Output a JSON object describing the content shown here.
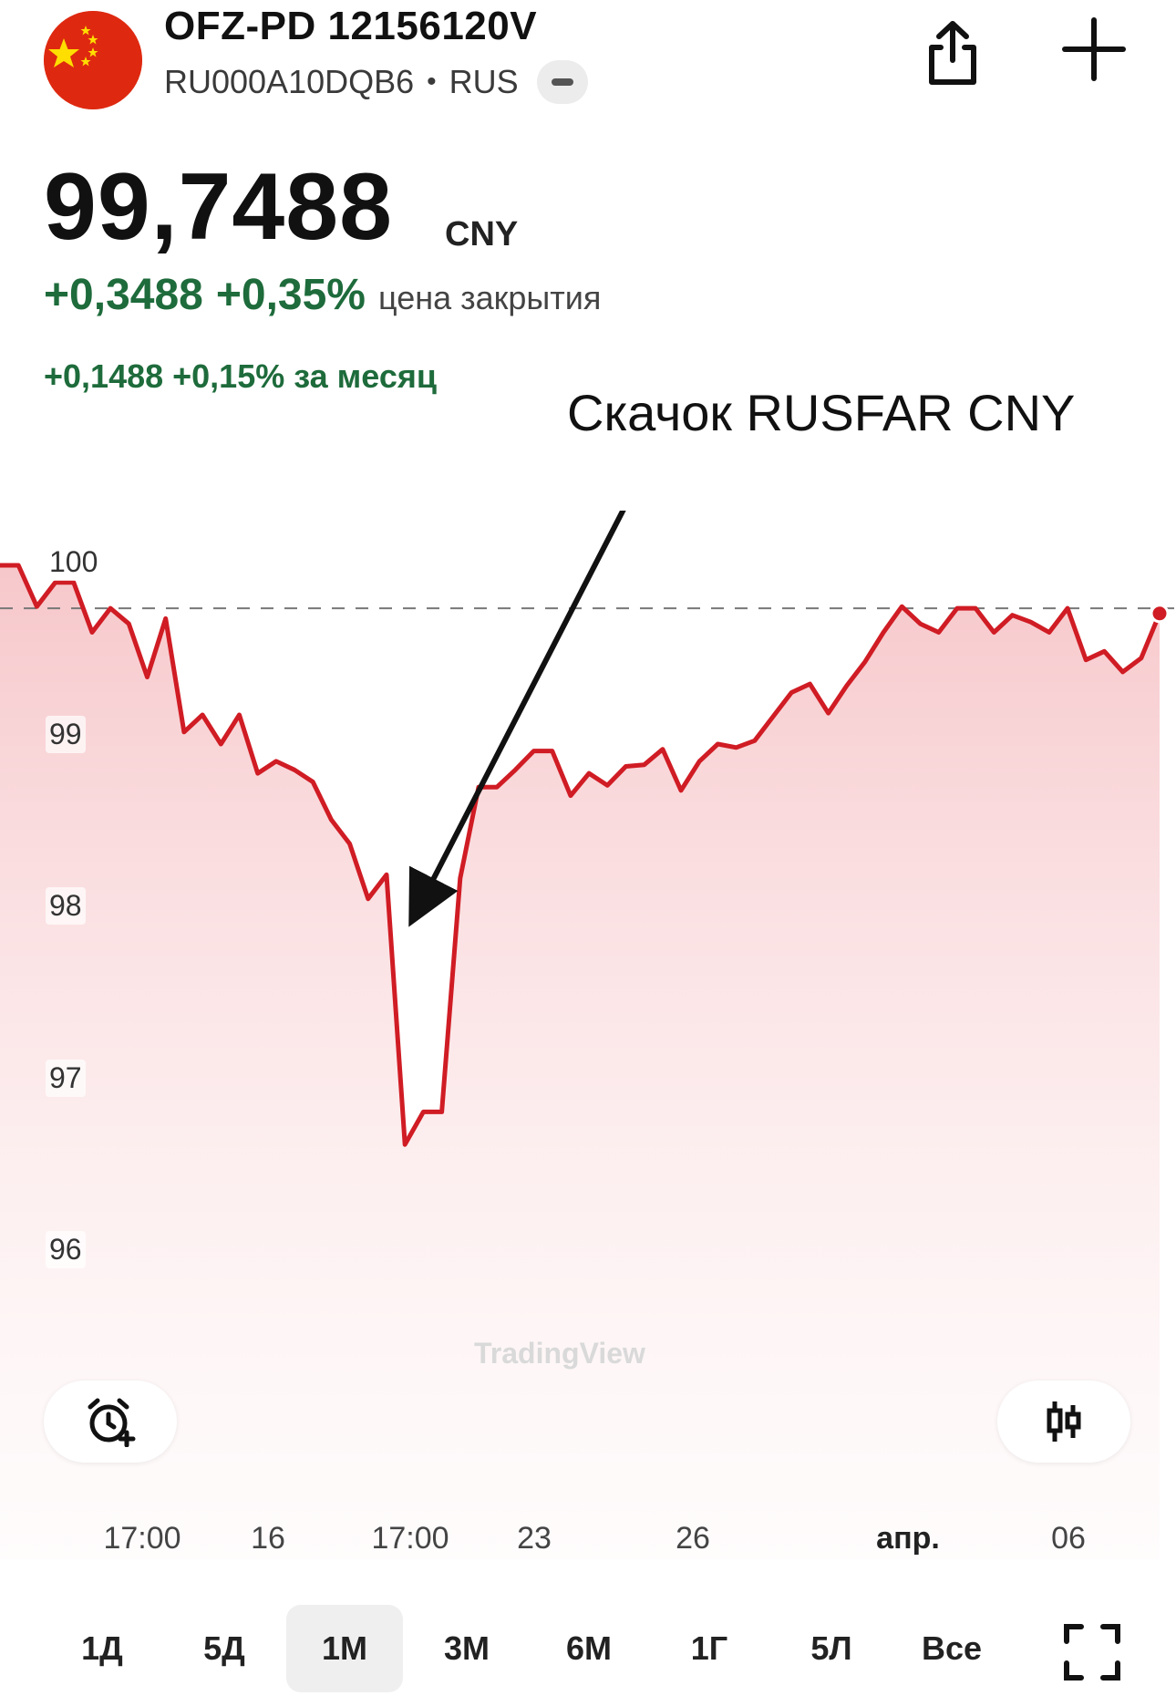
{
  "header": {
    "title": "OFZ-PD 12156120V",
    "isin": "RU000A10DQB6",
    "separator": "•",
    "exchange": "RUS",
    "flag_icon": "china-flag-icon",
    "share_icon": "share-icon",
    "add_icon": "plus-icon"
  },
  "quote": {
    "price": "99,7488",
    "currency": "CNY",
    "change_abs": "+0,3488",
    "change_pct": "+0,35%",
    "change_label": "цена закрытия",
    "month_change": "+0,1488 +0,15% за месяц"
  },
  "annotation": "Скачок RUSFAR CNY",
  "colors": {
    "line": "#d01c24",
    "fill": "#f6c9cc",
    "positive": "#1e6b3b"
  },
  "chart_data": {
    "type": "area",
    "y_ticks": [
      "100",
      "99",
      "98",
      "97",
      "96"
    ],
    "x_ticks": [
      "17:00",
      "16",
      "17:00",
      "23",
      "26",
      "апр.",
      "06"
    ],
    "ylim": [
      95.5,
      100.3
    ],
    "reference_line": 99.75,
    "series": [
      {
        "values": [
          100.0,
          100.0,
          99.76,
          99.9,
          99.9,
          99.61,
          99.75,
          99.66,
          99.35,
          99.69,
          99.03,
          99.13,
          98.96,
          99.13,
          98.79,
          98.86,
          98.81,
          98.74,
          98.52,
          98.38,
          98.06,
          98.2,
          96.63,
          96.82,
          96.82,
          98.18,
          98.71,
          98.71,
          98.81,
          98.92,
          98.92,
          98.66,
          98.79,
          98.72,
          98.83,
          98.84,
          98.93,
          98.69,
          98.86,
          98.96,
          98.94,
          98.98,
          99.12,
          99.26,
          99.31,
          99.14,
          99.3,
          99.44,
          99.61,
          99.76,
          99.66,
          99.61,
          99.75,
          99.75,
          99.61,
          99.71,
          99.67,
          99.61,
          99.75,
          99.45,
          99.5,
          99.38,
          99.46,
          99.72
        ]
      }
    ],
    "watermark": "TradingView"
  },
  "buttons": {
    "alert_icon": "alarm-plus-icon",
    "chart_type_icon": "candlestick-icon",
    "fullscreen_icon": "fullscreen-icon"
  },
  "ranges": [
    "1Д",
    "5Д",
    "1М",
    "3М",
    "6М",
    "1Г",
    "5Л",
    "Все"
  ],
  "active_range": "1М"
}
